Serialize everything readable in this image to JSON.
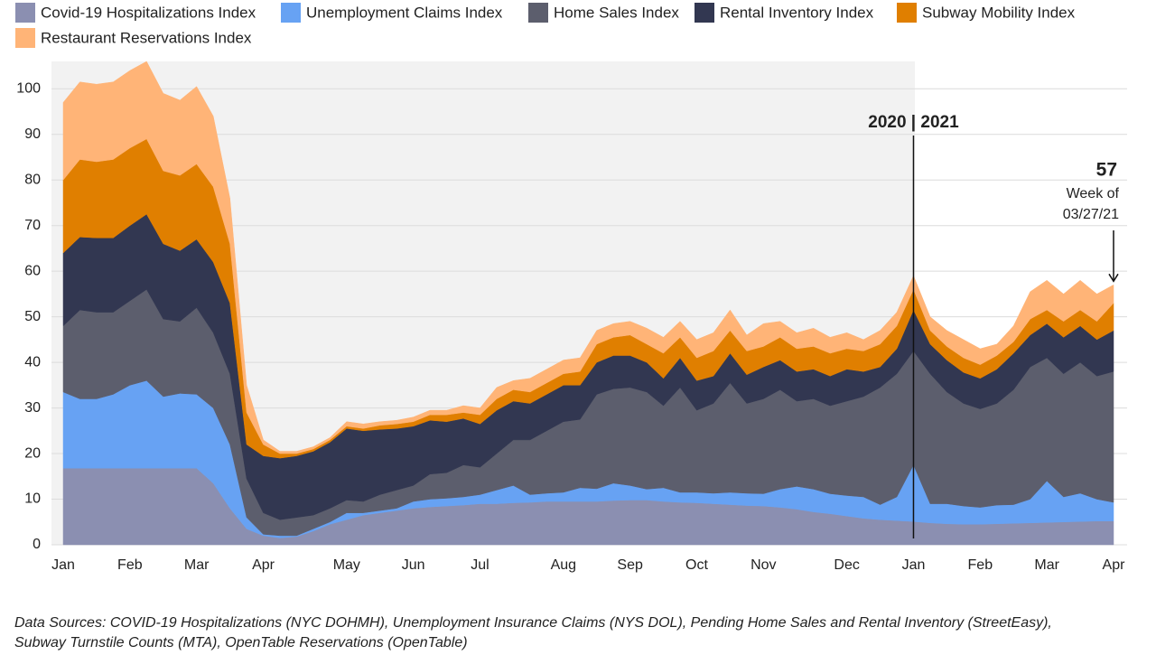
{
  "chart_data": {
    "type": "stacked_area",
    "categories": [
      "Jan",
      null,
      null,
      null,
      "Feb",
      null,
      null,
      null,
      "Mar",
      null,
      null,
      null,
      "Apr",
      null,
      null,
      null,
      null,
      "May",
      null,
      null,
      null,
      "Jun",
      null,
      null,
      null,
      "Jul",
      null,
      null,
      null,
      null,
      "Aug",
      null,
      null,
      null,
      "Sep",
      null,
      null,
      null,
      "Oct",
      null,
      null,
      null,
      "Nov",
      null,
      null,
      null,
      null,
      "Dec",
      null,
      null,
      null,
      "Jan",
      null,
      null,
      null,
      "Feb",
      null,
      null,
      null,
      "Mar",
      null,
      null,
      null,
      "Apr"
    ],
    "series": [
      {
        "name": "Covid-19 Hospitalizations Index",
        "color": "#8b8fb1",
        "values": [
          16.8,
          16.8,
          16.8,
          16.8,
          16.8,
          16.8,
          16.8,
          16.8,
          16.8,
          13.5,
          8,
          3.5,
          2,
          1.5,
          1.8,
          3,
          4.5,
          5.5,
          6.5,
          7,
          7.5,
          8,
          8.3,
          8.5,
          8.7,
          9,
          9,
          9.2,
          9.3,
          9.5,
          9.5,
          9.5,
          9.5,
          9.7,
          9.8,
          9.8,
          9.5,
          9.3,
          9.2,
          9,
          8.8,
          8.6,
          8.5,
          8.2,
          7.8,
          7.2,
          6.8,
          6.3,
          5.8,
          5.5,
          5.3,
          5.1,
          4.8,
          4.6,
          4.5,
          4.5,
          4.6,
          4.7,
          4.8,
          4.9,
          5,
          5.1,
          5.2,
          5.2
        ]
      },
      {
        "name": "Unemployment Claims Index",
        "color": "#67a2f3",
        "values": [
          16.7,
          15.2,
          15.2,
          16.2,
          18.2,
          19.2,
          15.7,
          16.4,
          16.2,
          16.5,
          14,
          2.5,
          0.3,
          0.5,
          0.2,
          0.5,
          0.5,
          1.5,
          0.5,
          0.5,
          0.5,
          1.5,
          1.7,
          1.7,
          1.8,
          2,
          3,
          3.8,
          1.7,
          1.8,
          2,
          3,
          2.8,
          3.8,
          3.2,
          2.4,
          3,
          2.2,
          2.3,
          2.3,
          2.7,
          2.7,
          2.7,
          4,
          5,
          5,
          4.4,
          4.5,
          4.7,
          3.3,
          5.2,
          12.4,
          4.2,
          4.4,
          4,
          3.7,
          4.1,
          4.1,
          5.2,
          9.1,
          5.5,
          6.2,
          4.8,
          4.1
        ]
      },
      {
        "name": "Home Sales Index",
        "color": "#5c5e6d",
        "values": [
          14.5,
          19.5,
          19,
          18,
          18.5,
          20,
          17,
          15.8,
          19,
          16.5,
          15.5,
          8.5,
          4.7,
          3.5,
          4,
          3,
          3,
          2.8,
          2.5,
          3.5,
          4,
          3.5,
          5.5,
          5.6,
          7,
          6,
          8,
          10,
          12,
          13.7,
          15.5,
          15,
          20.7,
          20.7,
          21.5,
          21.3,
          18,
          23,
          18,
          19.7,
          24,
          19.7,
          20.8,
          21.8,
          18.7,
          19.8,
          19.3,
          20.7,
          22,
          25.7,
          27,
          25,
          28.5,
          24.5,
          22.5,
          21.6,
          22.3,
          25.2,
          29,
          27,
          27,
          28.7,
          27,
          28.7
        ]
      },
      {
        "name": "Rental Inventory Index",
        "color": "#323751",
        "values": [
          16,
          16,
          16.3,
          16.3,
          16.5,
          16.5,
          16.5,
          15.5,
          15,
          15.5,
          15.5,
          7.5,
          12.5,
          13.5,
          13.5,
          14,
          14.5,
          15.7,
          15.5,
          14.3,
          13.5,
          13,
          11.8,
          11.2,
          10.2,
          9.5,
          9.5,
          8.5,
          8,
          8,
          8,
          7.5,
          7,
          7.3,
          7,
          6.5,
          6,
          6.5,
          6.5,
          6,
          6.5,
          6.3,
          7,
          6.5,
          6.5,
          6.5,
          6.5,
          7,
          5.5,
          4.5,
          5.5,
          9,
          6.5,
          7,
          6.8,
          6.7,
          7.5,
          8,
          7,
          7.5,
          8,
          8,
          8,
          9
        ]
      },
      {
        "name": "Subway Mobility Index",
        "color": "#e07f00",
        "values": [
          16,
          17,
          16.7,
          17.2,
          17,
          16.5,
          16,
          16.5,
          16.5,
          16.5,
          13,
          7,
          2.5,
          1,
          0.5,
          0.5,
          0.5,
          0.5,
          0.5,
          0.9,
          1,
          1,
          1.2,
          1.5,
          1.3,
          2,
          2.5,
          2.5,
          2.5,
          2.5,
          2.5,
          3,
          4,
          4,
          4.5,
          4,
          5.5,
          4.5,
          5,
          5.5,
          5,
          5.2,
          4.5,
          5,
          5,
          5,
          5,
          4.5,
          4.5,
          5,
          5,
          4.5,
          3,
          3,
          3.2,
          3,
          3,
          2.5,
          3.5,
          3,
          3.5,
          3.5,
          4,
          6
        ]
      },
      {
        "name": "Restaurant Reservations Index",
        "color": "#ffb477",
        "values": [
          17,
          17,
          17,
          17,
          17,
          17,
          17,
          16.5,
          17,
          15.5,
          10,
          6,
          1,
          0.5,
          0.5,
          0.5,
          0.5,
          1,
          1,
          0.8,
          0.8,
          1,
          1,
          1,
          1.5,
          1.5,
          2.5,
          2,
          3,
          3,
          3,
          3,
          3,
          3,
          3,
          3.5,
          3.5,
          3.5,
          4,
          4,
          4.5,
          3.5,
          5,
          3.5,
          3.5,
          4,
          3.5,
          3.5,
          2.5,
          3,
          3,
          3,
          3,
          3.5,
          4,
          3.5,
          2.5,
          3.5,
          6,
          6.5,
          6,
          6.5,
          6,
          4
        ]
      }
    ],
    "ylim": [
      0,
      106
    ],
    "yticks": [
      0,
      10,
      20,
      30,
      40,
      50,
      60,
      70,
      80,
      90,
      100
    ],
    "grid": true,
    "annotations": {
      "divider": "2020 | 2021",
      "last_value": "57",
      "last_note": [
        "Week of",
        "03/27/21"
      ]
    },
    "source": [
      "Data Sources: COVID-19 Hospitalizations (NYC DOHMH), Unemployment Insurance Claims (NYS DOL), Pending Home Sales and Rental Inventory (StreetEasy),",
      "Subway Turnstile Counts (MTA), OpenTable Reservations (OpenTable)"
    ]
  }
}
